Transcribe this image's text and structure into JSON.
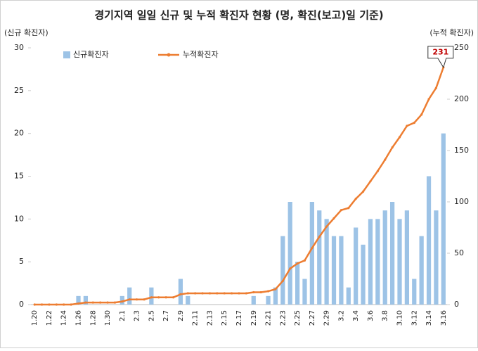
{
  "chart_data": {
    "type": "bar-line",
    "title": "경기지역 일일 신규 및 누적 확진자 현황 (명, 확진(보고)일 기준)",
    "y_label": "(신규 확진자)",
    "y2_label": "(누적 확진자)",
    "categories": [
      "1.20",
      null,
      "1.22",
      null,
      "1.24",
      null,
      "1.26",
      null,
      "1.28",
      null,
      "1.30",
      null,
      "2.1",
      null,
      "2.3",
      null,
      "2.5",
      null,
      "2.7",
      null,
      "2.9",
      null,
      "2.11",
      null,
      "2.13",
      null,
      "2.15",
      null,
      "2.17",
      null,
      "2.19",
      null,
      "2.21",
      null,
      "2.23",
      null,
      "2.25",
      null,
      "2.27",
      null,
      "2.29",
      null,
      "3.2",
      null,
      "3.4",
      null,
      "3.6",
      null,
      "3.8",
      null,
      "3.10",
      null,
      "3.12",
      null,
      "3.14",
      null,
      "3.16"
    ],
    "series": [
      {
        "name": "신규확진자",
        "color": "#9dc3e6",
        "axis": "y",
        "values": [
          0,
          0,
          0,
          0,
          0,
          0,
          1,
          1,
          0,
          0,
          0,
          0,
          1,
          2,
          0,
          0,
          2,
          0,
          0,
          0,
          3,
          1,
          0,
          0,
          0,
          0,
          0,
          0,
          0,
          0,
          1,
          0,
          1,
          2,
          8,
          12,
          5,
          3,
          12,
          11,
          10,
          8,
          8,
          2,
          9,
          7,
          10,
          10,
          11,
          12,
          10,
          11,
          3,
          8,
          15,
          11,
          20
        ]
      },
      {
        "name": "누적확진자",
        "color": "#ed7d31",
        "axis": "y2",
        "values": [
          0,
          0,
          0,
          0,
          0,
          0,
          1,
          2,
          2,
          2,
          2,
          2,
          3,
          5,
          5,
          5,
          7,
          7,
          7,
          7,
          10,
          11,
          11,
          11,
          11,
          11,
          11,
          11,
          11,
          11,
          12,
          12,
          13,
          15,
          23,
          35,
          40,
          43,
          55,
          66,
          76,
          84,
          92,
          94,
          103,
          110,
          120,
          130,
          141,
          153,
          163,
          174,
          177,
          185,
          200,
          211,
          231
        ]
      }
    ],
    "ylim": [
      0,
      30
    ],
    "yticks": [
      0,
      5,
      10,
      15,
      20,
      25,
      30
    ],
    "y2lim": [
      0,
      250
    ],
    "y2ticks": [
      0,
      50,
      100,
      150,
      200,
      250
    ]
  }
}
